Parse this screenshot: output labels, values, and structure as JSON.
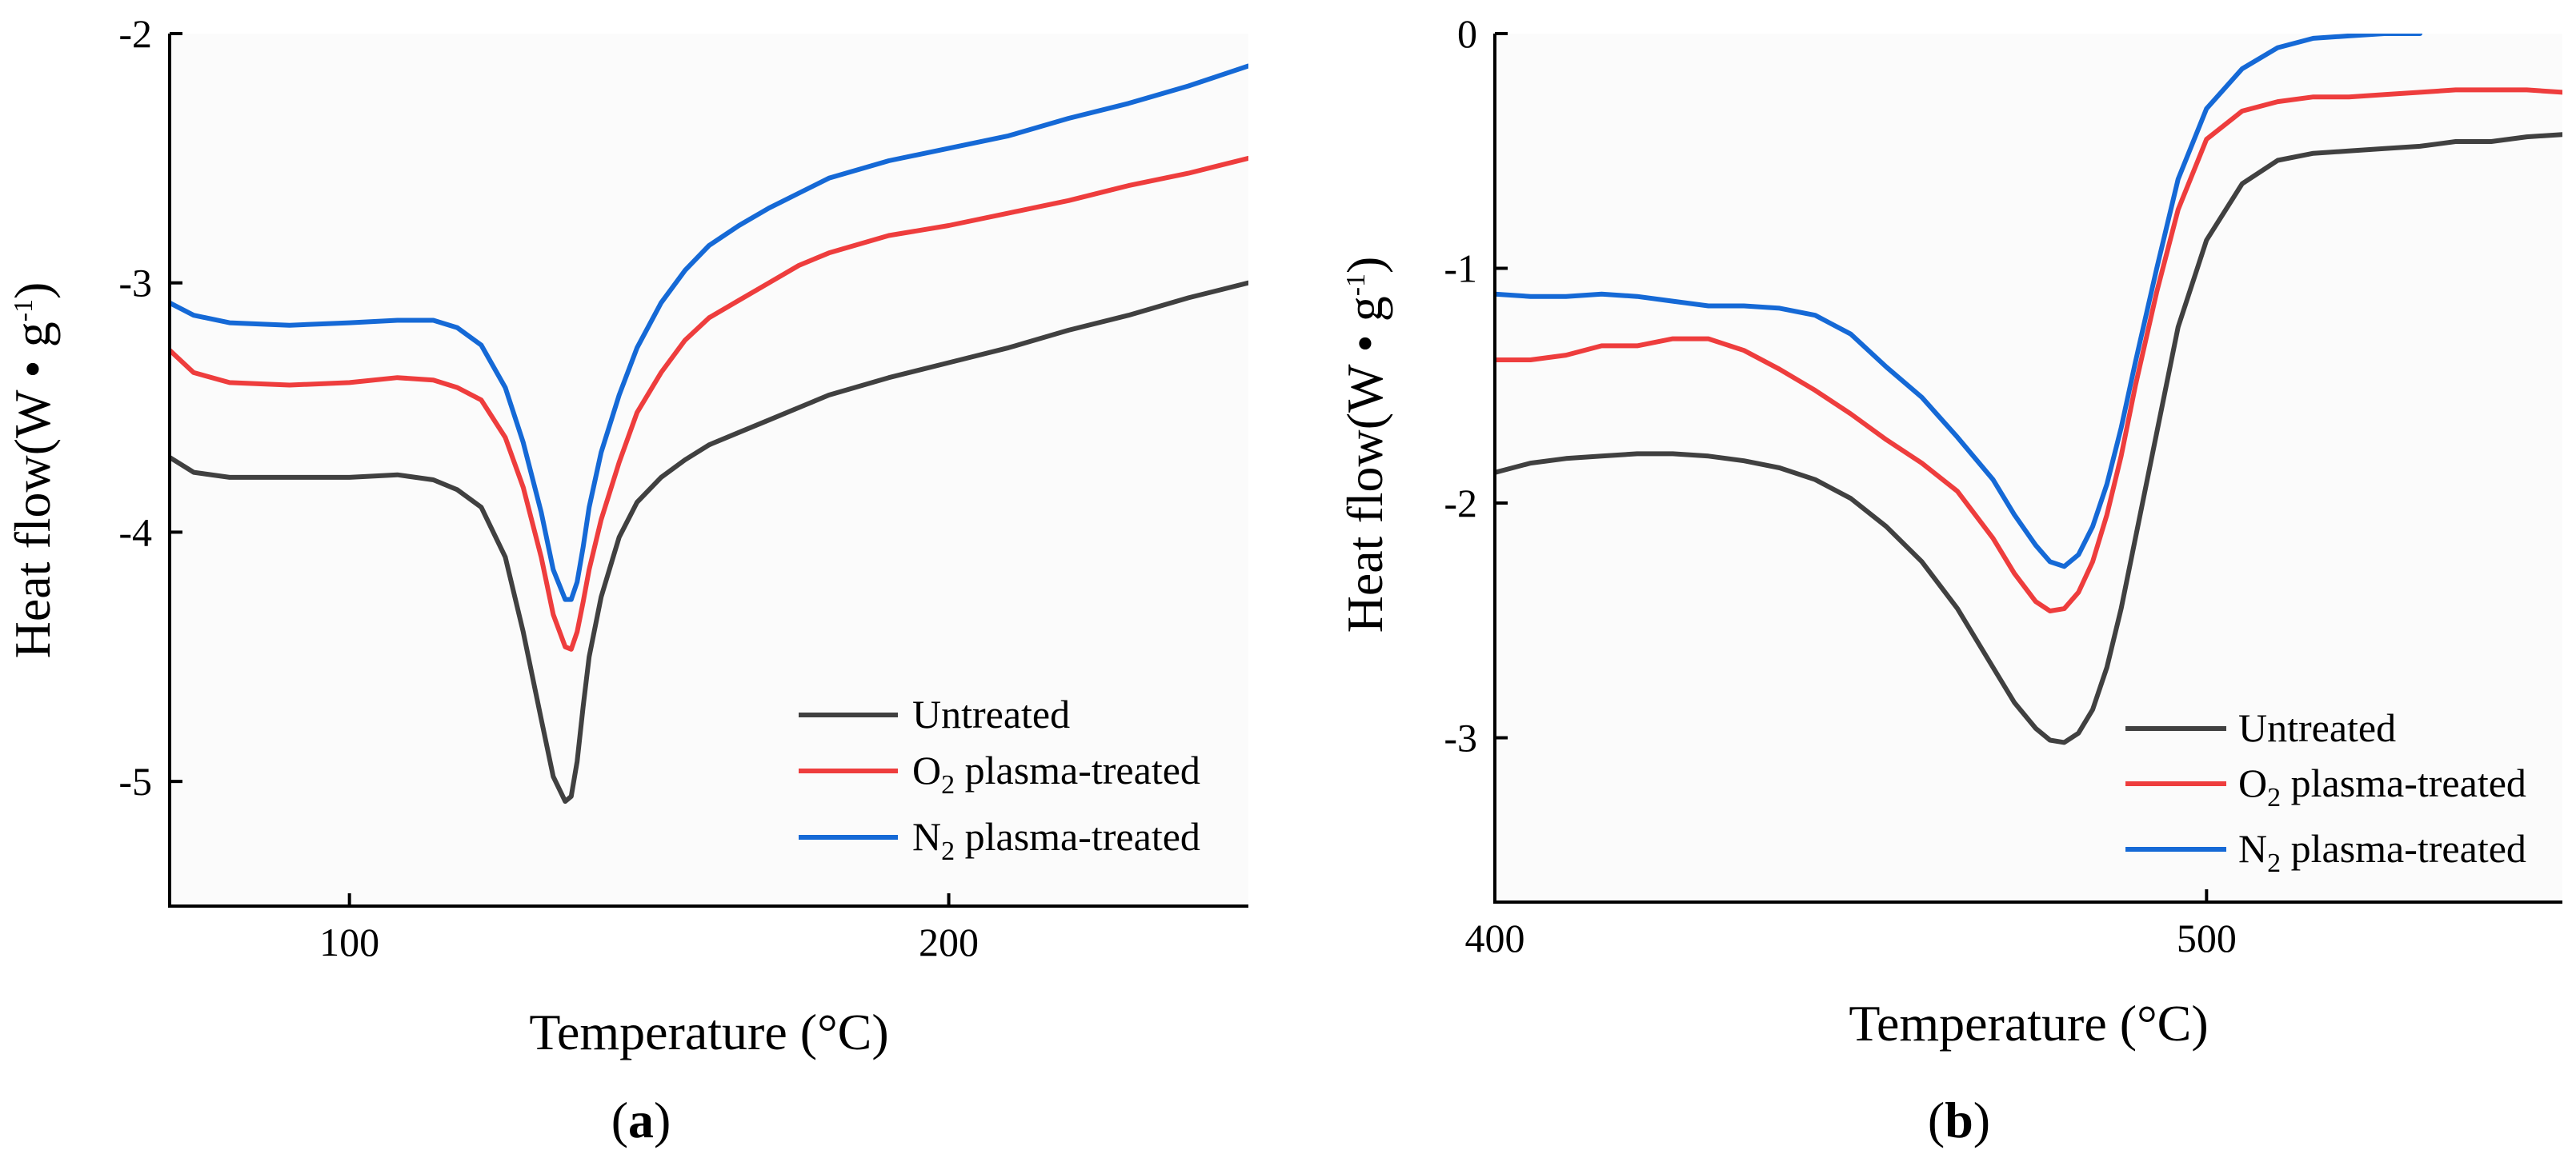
{
  "chart_data": [
    {
      "type": "line",
      "panel_label": {
        "open": "(",
        "letter": "a",
        "close": ")"
      },
      "xlabel": "Temperature (°C)",
      "ylabel": {
        "main": "Heat flow(W • g",
        "sup": "-1",
        "close": ")"
      },
      "xlim": [
        70,
        250
      ],
      "ylim": [
        -5.5,
        -2
      ],
      "xticks": [
        {
          "value": 100,
          "label": "100"
        },
        {
          "value": 200,
          "label": "200"
        }
      ],
      "yticks": [
        {
          "value": -2,
          "label": "-2"
        },
        {
          "value": -3,
          "label": "-3"
        },
        {
          "value": -4,
          "label": "-4"
        },
        {
          "value": -5,
          "label": "-5"
        }
      ],
      "legend_position": "bottom-right",
      "series": [
        {
          "name": "Untreated",
          "legend_parts": [
            "Untreated"
          ],
          "color": "#404040",
          "x": [
            70,
            74,
            80,
            90,
            100,
            108,
            114,
            118,
            122,
            126,
            129,
            132,
            134,
            136,
            137,
            138,
            139,
            140,
            142,
            145,
            148,
            152,
            156,
            160,
            165,
            170,
            175,
            180,
            190,
            200,
            210,
            220,
            230,
            240,
            250
          ],
          "y": [
            -3.7,
            -3.76,
            -3.78,
            -3.78,
            -3.78,
            -3.77,
            -3.79,
            -3.83,
            -3.9,
            -4.1,
            -4.4,
            -4.75,
            -4.98,
            -5.08,
            -5.06,
            -4.92,
            -4.7,
            -4.5,
            -4.26,
            -4.02,
            -3.88,
            -3.78,
            -3.71,
            -3.65,
            -3.6,
            -3.55,
            -3.5,
            -3.45,
            -3.38,
            -3.32,
            -3.26,
            -3.19,
            -3.13,
            -3.06,
            -3.0
          ]
        },
        {
          "name": "O2 plasma-treated",
          "legend_parts": [
            "O",
            "2",
            " plasma-treated"
          ],
          "color": "#ee3d3d",
          "x": [
            70,
            74,
            80,
            90,
            100,
            108,
            114,
            118,
            122,
            126,
            129,
            132,
            134,
            136,
            137,
            138,
            139,
            140,
            142,
            145,
            148,
            152,
            156,
            160,
            165,
            170,
            175,
            180,
            190,
            200,
            210,
            220,
            230,
            240,
            250
          ],
          "y": [
            -3.27,
            -3.36,
            -3.4,
            -3.41,
            -3.4,
            -3.38,
            -3.39,
            -3.42,
            -3.47,
            -3.62,
            -3.82,
            -4.1,
            -4.33,
            -4.46,
            -4.47,
            -4.4,
            -4.28,
            -4.15,
            -3.95,
            -3.72,
            -3.52,
            -3.36,
            -3.23,
            -3.14,
            -3.07,
            -3.0,
            -2.93,
            -2.88,
            -2.81,
            -2.77,
            -2.72,
            -2.67,
            -2.61,
            -2.56,
            -2.5
          ]
        },
        {
          "name": "N2 plasma-treated",
          "legend_parts": [
            "N",
            "2",
            " plasma-treated"
          ],
          "color": "#1569d6",
          "x": [
            70,
            74,
            80,
            90,
            100,
            108,
            114,
            118,
            122,
            126,
            129,
            132,
            134,
            136,
            137,
            138,
            139,
            140,
            142,
            145,
            148,
            152,
            156,
            160,
            165,
            170,
            175,
            180,
            190,
            200,
            210,
            220,
            230,
            240,
            250
          ],
          "y": [
            -3.08,
            -3.13,
            -3.16,
            -3.17,
            -3.16,
            -3.15,
            -3.15,
            -3.18,
            -3.25,
            -3.42,
            -3.64,
            -3.92,
            -4.15,
            -4.27,
            -4.27,
            -4.2,
            -4.06,
            -3.9,
            -3.68,
            -3.45,
            -3.26,
            -3.08,
            -2.95,
            -2.85,
            -2.77,
            -2.7,
            -2.64,
            -2.58,
            -2.51,
            -2.46,
            -2.41,
            -2.34,
            -2.28,
            -2.21,
            -2.13
          ]
        }
      ]
    },
    {
      "type": "line",
      "panel_label": {
        "open": "(",
        "letter": "b",
        "close": ")"
      },
      "xlabel": "Temperature (°C)",
      "ylabel": {
        "main": "Heat flow(W • g",
        "sup": "-1",
        "close": ")"
      },
      "xlim": [
        400,
        550
      ],
      "ylim": [
        -3.7,
        0
      ],
      "xticks": [
        {
          "value": 400,
          "label": "400"
        },
        {
          "value": 500,
          "label": "500"
        }
      ],
      "yticks": [
        {
          "value": 0,
          "label": "0"
        },
        {
          "value": -1,
          "label": "-1"
        },
        {
          "value": -2,
          "label": "-2"
        },
        {
          "value": -3,
          "label": "-3"
        }
      ],
      "legend_position": "bottom-right",
      "series": [
        {
          "name": "Untreated",
          "legend_parts": [
            "Untreated"
          ],
          "color": "#404040",
          "x": [
            400,
            405,
            410,
            415,
            420,
            425,
            430,
            435,
            440,
            445,
            450,
            455,
            460,
            465,
            470,
            473,
            476,
            478,
            480,
            482,
            484,
            486,
            488,
            490,
            493,
            496,
            500,
            505,
            510,
            515,
            520,
            525,
            530,
            535,
            540,
            545,
            550
          ],
          "y": [
            -1.87,
            -1.83,
            -1.81,
            -1.8,
            -1.79,
            -1.79,
            -1.8,
            -1.82,
            -1.85,
            -1.9,
            -1.98,
            -2.1,
            -2.25,
            -2.45,
            -2.7,
            -2.85,
            -2.96,
            -3.01,
            -3.02,
            -2.98,
            -2.88,
            -2.7,
            -2.45,
            -2.15,
            -1.7,
            -1.25,
            -0.88,
            -0.64,
            -0.54,
            -0.51,
            -0.5,
            -0.49,
            -0.48,
            -0.46,
            -0.46,
            -0.44,
            -0.43
          ]
        },
        {
          "name": "O2 plasma-treated",
          "legend_parts": [
            "O",
            "2",
            " plasma-treated"
          ],
          "color": "#ee3d3d",
          "x": [
            400,
            405,
            410,
            415,
            420,
            425,
            430,
            435,
            440,
            445,
            450,
            455,
            460,
            465,
            470,
            473,
            476,
            478,
            480,
            482,
            484,
            486,
            488,
            490,
            493,
            496,
            500,
            505,
            510,
            515,
            520,
            525,
            530,
            535,
            540,
            545,
            550
          ],
          "y": [
            -1.39,
            -1.39,
            -1.37,
            -1.33,
            -1.33,
            -1.3,
            -1.3,
            -1.35,
            -1.43,
            -1.52,
            -1.62,
            -1.73,
            -1.83,
            -1.95,
            -2.15,
            -2.3,
            -2.42,
            -2.46,
            -2.45,
            -2.38,
            -2.25,
            -2.05,
            -1.8,
            -1.5,
            -1.1,
            -0.75,
            -0.45,
            -0.33,
            -0.29,
            -0.27,
            -0.27,
            -0.26,
            -0.25,
            -0.24,
            -0.24,
            -0.24,
            -0.25
          ]
        },
        {
          "name": "N2 plasma-treated",
          "legend_parts": [
            "N",
            "2",
            " plasma-treated"
          ],
          "color": "#1569d6",
          "x": [
            400,
            405,
            410,
            415,
            420,
            425,
            430,
            435,
            440,
            445,
            450,
            455,
            460,
            465,
            470,
            473,
            476,
            478,
            480,
            482,
            484,
            486,
            488,
            490,
            493,
            496,
            500,
            505,
            510,
            515,
            520,
            525,
            530
          ],
          "y": [
            -1.11,
            -1.12,
            -1.12,
            -1.11,
            -1.12,
            -1.14,
            -1.16,
            -1.16,
            -1.17,
            -1.2,
            -1.28,
            -1.42,
            -1.55,
            -1.72,
            -1.9,
            -2.05,
            -2.18,
            -2.25,
            -2.27,
            -2.22,
            -2.1,
            -1.92,
            -1.68,
            -1.4,
            -1.0,
            -0.62,
            -0.32,
            -0.15,
            -0.06,
            -0.02,
            -0.01,
            0.0,
            0.0
          ]
        }
      ]
    }
  ]
}
